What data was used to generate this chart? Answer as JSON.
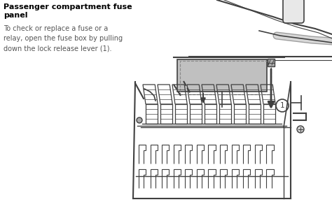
{
  "title": "Passenger compartment fuse\npanel",
  "body_text": "To check or replace a fuse or a\nrelay, open the fuse box by pulling\ndown the lock release lever (1).",
  "bg_color": "#ffffff",
  "line_color": "#404040",
  "gray_fill": "#c0c0c0",
  "text_color_title": "#000000",
  "text_color_body": "#555555",
  "figsize": [
    4.74,
    2.99
  ],
  "dpi": 100
}
